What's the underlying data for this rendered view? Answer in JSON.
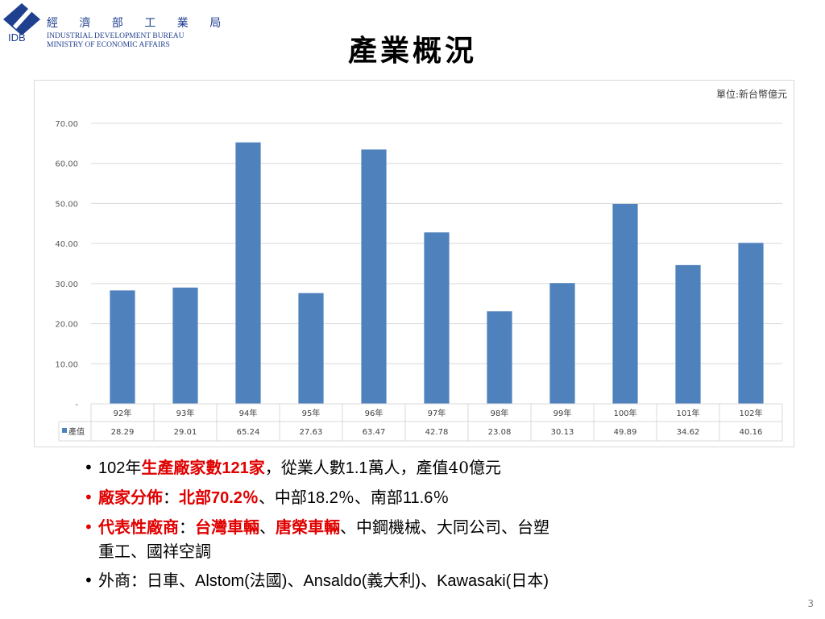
{
  "header": {
    "logo_cn": "經 濟 部 工 業 局",
    "logo_en_line1": "INDUSTRIAL DEVELOPMENT BUREAU",
    "logo_en_line2": "MINISTRY OF ECONOMIC AFFAIRS",
    "logo_abbr": "IDB",
    "title": "產業概況"
  },
  "chart_data": {
    "type": "bar",
    "unit_label": "單位:新台幣億元",
    "categories": [
      "92年",
      "93年",
      "94年",
      "95年",
      "96年",
      "97年",
      "98年",
      "99年",
      "100年",
      "101年",
      "102年"
    ],
    "series": [
      {
        "name": "產值",
        "values": [
          28.29,
          29.01,
          65.24,
          27.63,
          63.47,
          42.78,
          23.08,
          30.13,
          49.89,
          34.62,
          40.16
        ]
      }
    ],
    "value_labels": [
      "28.29",
      "29.01",
      "65.24",
      "27.63",
      "63.47",
      "42.78",
      "23.08",
      "30.13",
      "49.89",
      "34.62",
      "40.16"
    ],
    "ylim": [
      0,
      70
    ],
    "yticks": [
      "-",
      "10.00",
      "20.00",
      "30.00",
      "40.00",
      "50.00",
      "60.00",
      "70.00"
    ],
    "grid": true,
    "legend": "data-table",
    "color": "#4f81bd"
  },
  "bullets": {
    "b1": {
      "p1": "102年",
      "p2": "生產廠家數",
      "p3": "121",
      "p4": "家",
      "p5": "，從業人數",
      "p6": "1.1",
      "p7": "萬人，產值40億元"
    },
    "b2": {
      "p1": "廠家分佈",
      "p2": "：",
      "p3": "北部",
      "p4": "70.2％",
      "p5": "、中部",
      "p6": "18.2％",
      "p7": "、南部",
      "p8": "11.6％"
    },
    "b3": {
      "p1": "代表性廠商",
      "p2": "：",
      "p3": "台灣車輛",
      "p4": "、",
      "p5": "唐榮車輛",
      "p6": "、中鋼機械、大同公司、台塑",
      "p7": "重工、國祥空調"
    },
    "b4": {
      "p1": "外商：日車、",
      "p2": "Alstom(",
      "p3": "法國",
      "p4": ")、",
      "p5": "Ansaldo(",
      "p6": "義大利",
      "p7": ")、",
      "p8": "Kawasaki(",
      "p9": "日本",
      "p10": ")"
    }
  },
  "page_number": "3"
}
